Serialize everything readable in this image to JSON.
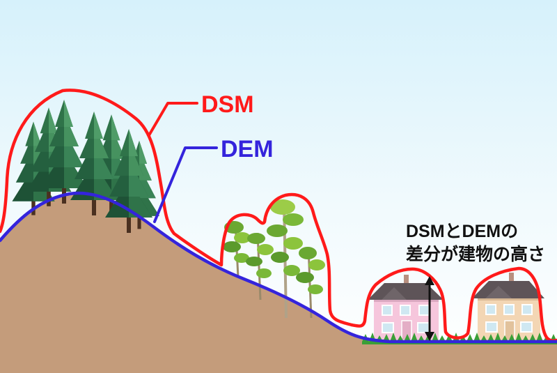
{
  "labels": {
    "dsm": "DSM",
    "dem": "DEM",
    "difference_line1": "DSMとDEMの",
    "difference_line2": "差分が建物の高さ"
  },
  "colors": {
    "dsm_line": "#ff1a1a",
    "dem_line": "#3424dc",
    "ground": "#c49c7b"
  }
}
